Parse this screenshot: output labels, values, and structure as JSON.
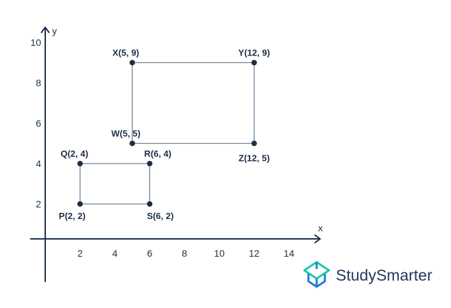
{
  "chart_data": {
    "type": "scatter",
    "xlabel": "x",
    "ylabel": "y",
    "x_ticks": [
      2,
      4,
      6,
      8,
      10,
      12,
      14
    ],
    "y_ticks": [
      2,
      4,
      6,
      8,
      10
    ],
    "grid": false,
    "points": [
      {
        "name": "P",
        "label": "P(2, 2)",
        "x": 2,
        "y": 2
      },
      {
        "name": "S",
        "label": "S(6, 2)",
        "x": 6,
        "y": 2
      },
      {
        "name": "Q",
        "label": "Q(2, 4)",
        "x": 2,
        "y": 4
      },
      {
        "name": "R",
        "label": "R(6, 4)",
        "x": 6,
        "y": 4
      },
      {
        "name": "W",
        "label": "W(5, 5)",
        "x": 5,
        "y": 5
      },
      {
        "name": "X",
        "label": "X(5, 9)",
        "x": 5,
        "y": 9
      },
      {
        "name": "Y",
        "label": "Y(12, 9)",
        "x": 12,
        "y": 9
      },
      {
        "name": "Z",
        "label": "Z(12, 5)",
        "x": 12,
        "y": 5
      }
    ],
    "polygons": [
      [
        "P",
        "Q",
        "R",
        "S"
      ],
      [
        "W",
        "X",
        "Y",
        "Z"
      ]
    ],
    "colors": {
      "axis": "#1d2f45",
      "edge": "#6f8096",
      "point": "#1d2f45"
    }
  },
  "logo": {
    "text": "StudySmarter",
    "colors": {
      "teal": "#1fc8a8",
      "blue": "#1e7fd8",
      "text": "#24395a"
    }
  }
}
